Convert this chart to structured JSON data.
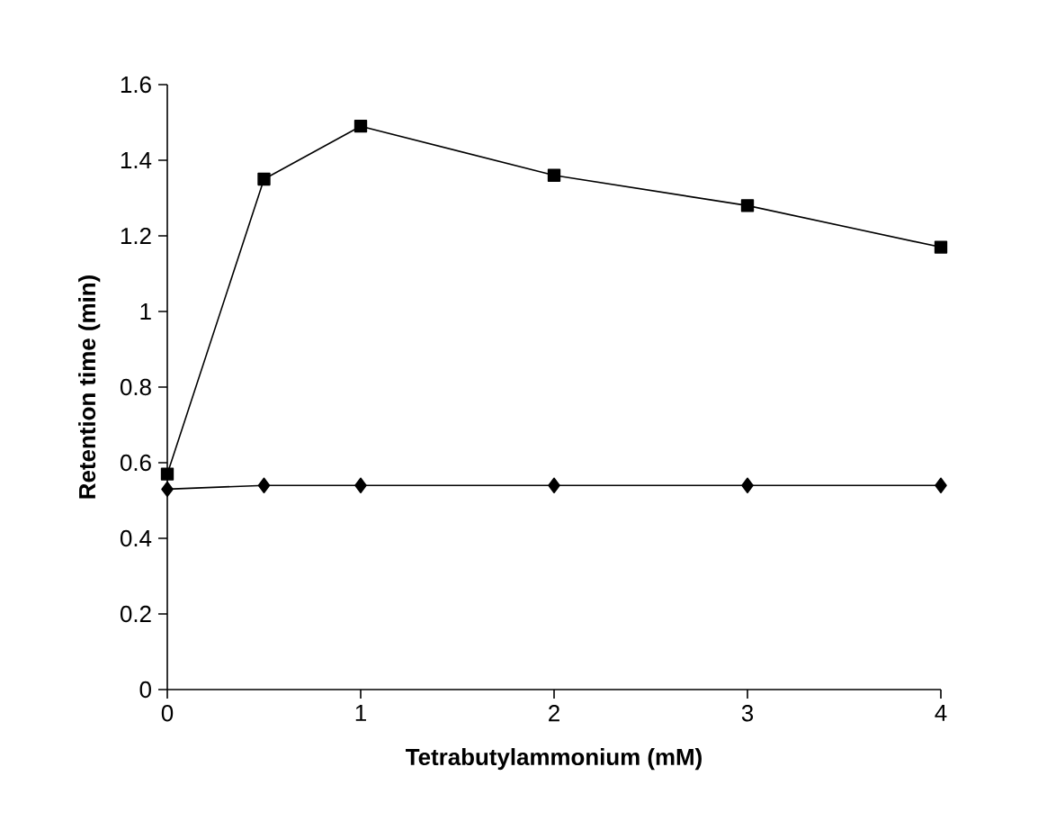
{
  "chart_data": {
    "type": "line",
    "xlabel": "Tetrabutylammonium (mM)",
    "ylabel": "Retention time (min)",
    "x": [
      0,
      0.5,
      1,
      2,
      3,
      4
    ],
    "series": [
      {
        "color": "#000000",
        "marker": "square",
        "values": [
          0.57,
          1.35,
          1.49,
          1.36,
          1.28,
          1.17
        ]
      },
      {
        "color": "#000000",
        "marker": "diamond",
        "values": [
          0.53,
          0.54,
          0.54,
          0.54,
          0.54,
          0.54
        ]
      }
    ],
    "xlim": [
      0,
      4
    ],
    "ylim": [
      0,
      1.6
    ],
    "xticks": [
      0,
      1,
      2,
      3,
      4
    ],
    "yticks": [
      0,
      0.2,
      0.4,
      0.6,
      0.8,
      1,
      1.2,
      1.4,
      1.6
    ],
    "grid": false,
    "legend": false,
    "line_style": "solid"
  }
}
